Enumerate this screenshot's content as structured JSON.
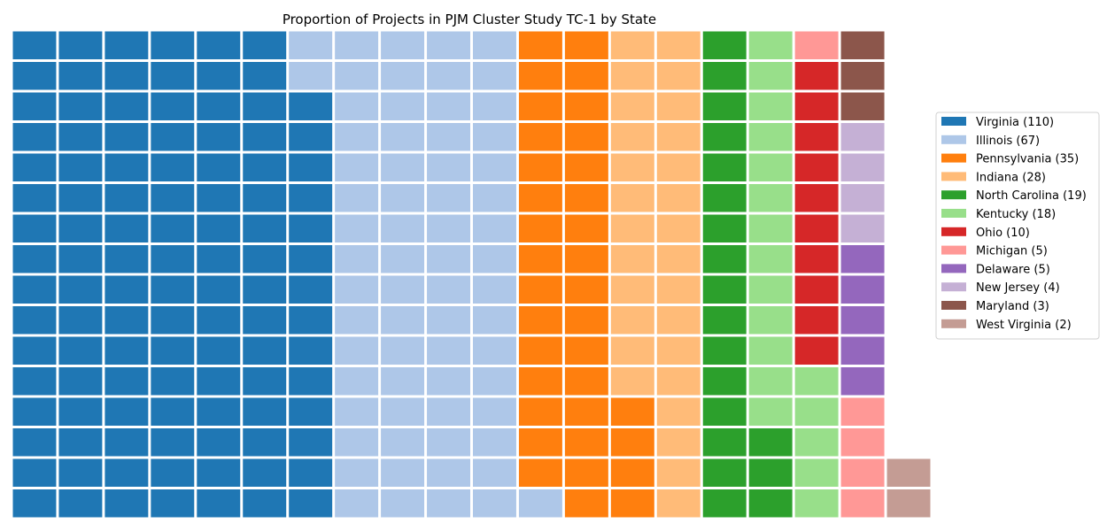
{
  "chart_data": {
    "type": "waffle",
    "title": "Proportion of Projects in PJM Cluster Study TC-1 by State",
    "rows": 16,
    "fill_direction": "column-major, bottom-to-top",
    "legend_placement": "right",
    "series": [
      {
        "label": "Virginia (110)",
        "value": 110,
        "color": "#1f77b4"
      },
      {
        "label": "Illinois (67)",
        "value": 67,
        "color": "#aec7e8"
      },
      {
        "label": "Pennsylvania (35)",
        "value": 35,
        "color": "#ff7f0e"
      },
      {
        "label": "Indiana (28)",
        "value": 28,
        "color": "#ffbb78"
      },
      {
        "label": "North Carolina (19)",
        "value": 19,
        "color": "#2ca02c"
      },
      {
        "label": "Kentucky (18)",
        "value": 18,
        "color": "#98df8a"
      },
      {
        "label": "Ohio (10)",
        "value": 10,
        "color": "#d62728"
      },
      {
        "label": "Michigan (5)",
        "value": 5,
        "color": "#ff9896"
      },
      {
        "label": "Delaware (5)",
        "value": 5,
        "color": "#9467bd"
      },
      {
        "label": "New Jersey (4)",
        "value": 4,
        "color": "#c5b0d5"
      },
      {
        "label": "Maryland (3)",
        "value": 3,
        "color": "#8c564b"
      },
      {
        "label": "West Virginia (2)",
        "value": 2,
        "color": "#c49c94"
      }
    ]
  }
}
